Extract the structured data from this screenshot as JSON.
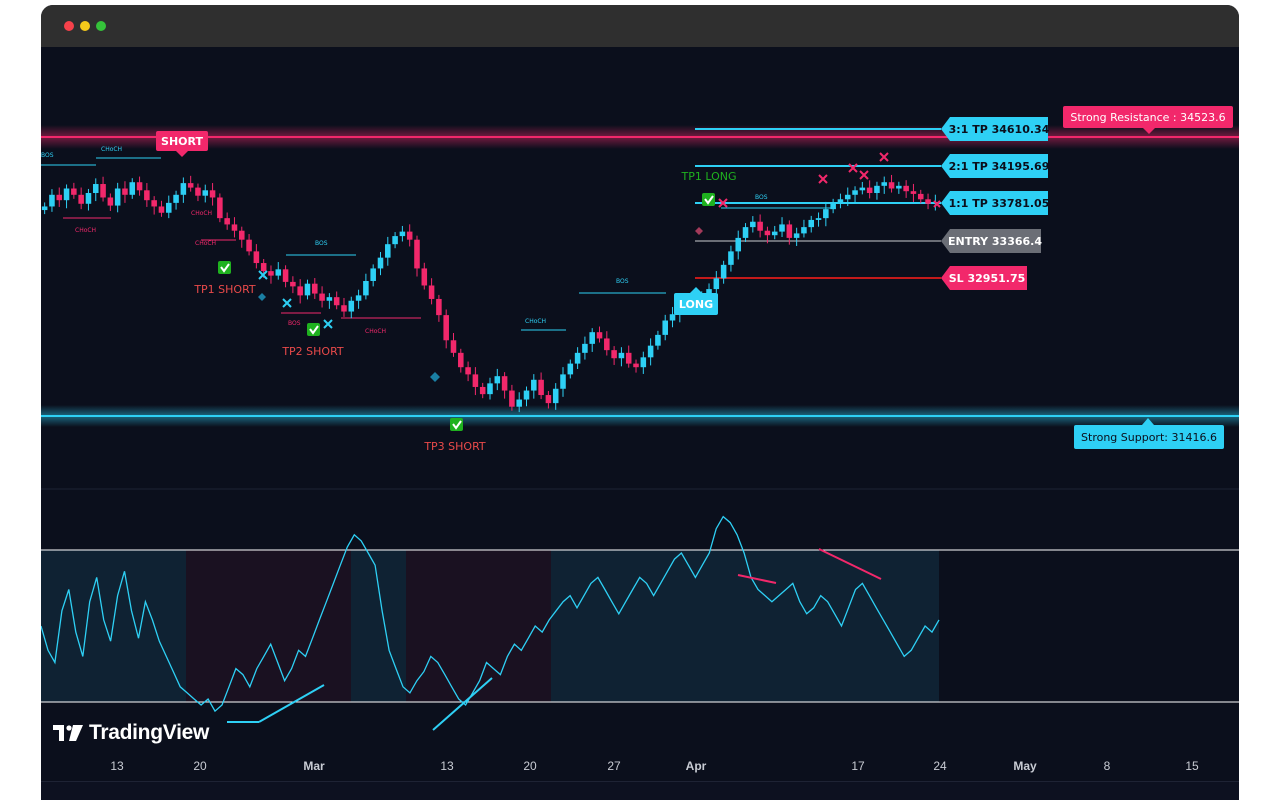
{
  "window": {
    "controls": [
      "close",
      "minimize",
      "maximize"
    ],
    "brand": "TradingView"
  },
  "colors": {
    "background": "#0b0f1c",
    "bull": "#2ed0f5",
    "bear": "#f2286b",
    "entry": "#6b6e76",
    "sl_line": "#c41a1a",
    "tp_label_text": "#e94a4a",
    "long_label": "#1fb11f"
  },
  "chart_data": {
    "type": "line",
    "x_axis": [
      "13",
      "20",
      "Mar",
      "13",
      "20",
      "27",
      "Apr",
      "17",
      "24",
      "May",
      "8",
      "15"
    ],
    "levels": {
      "resistance": {
        "label": "Strong Resistance : 34523.6",
        "value": 34523.6
      },
      "support": {
        "label": "Strong Support: 31416.6",
        "value": 31416.6
      },
      "tp3": {
        "label": "3:1 TP 34610.34",
        "value": 34610.34
      },
      "tp2": {
        "label": "2:1 TP 34195.69",
        "value": 34195.69
      },
      "tp1": {
        "label": "1:1 TP 33781.05",
        "value": 33781.05
      },
      "entry": {
        "label": "ENTRY 33366.4",
        "value": 33366.4
      },
      "sl": {
        "label": "SL 32951.75",
        "value": 32951.75
      }
    },
    "signals": [
      {
        "label": "SHORT",
        "side": "short"
      },
      {
        "label": "LONG",
        "side": "long"
      }
    ],
    "take_profit_hits": [
      {
        "label": "TP1 SHORT"
      },
      {
        "label": "TP2 SHORT"
      },
      {
        "label": "TP3 SHORT"
      },
      {
        "label": "TP1 LONG"
      }
    ],
    "structure_labels": [
      "BOS",
      "CHoCH",
      "CHoCH",
      "CHoCH",
      "BOS",
      "BOS",
      "CHoCH",
      "CHoCH",
      "CHoCH",
      "BOS",
      "BOS"
    ],
    "price_path": [
      [
        0,
        33750
      ],
      [
        1,
        33880
      ],
      [
        2,
        33820
      ],
      [
        3,
        33950
      ],
      [
        4,
        33880
      ],
      [
        5,
        33780
      ],
      [
        6,
        33900
      ],
      [
        7,
        34000
      ],
      [
        8,
        33850
      ],
      [
        9,
        33760
      ],
      [
        10,
        33950
      ],
      [
        11,
        33880
      ],
      [
        12,
        34020
      ],
      [
        13,
        33930
      ],
      [
        14,
        33820
      ],
      [
        15,
        33750
      ],
      [
        16,
        33680
      ],
      [
        17,
        33790
      ],
      [
        18,
        33880
      ],
      [
        19,
        34010
      ],
      [
        20,
        33960
      ],
      [
        21,
        33870
      ],
      [
        22,
        33930
      ],
      [
        23,
        33850
      ],
      [
        24,
        33620
      ],
      [
        25,
        33550
      ],
      [
        26,
        33480
      ],
      [
        27,
        33380
      ],
      [
        28,
        33250
      ],
      [
        29,
        33120
      ],
      [
        30,
        33030
      ],
      [
        31,
        32980
      ],
      [
        32,
        33050
      ],
      [
        33,
        32910
      ],
      [
        34,
        32860
      ],
      [
        35,
        32760
      ],
      [
        36,
        32890
      ],
      [
        37,
        32780
      ],
      [
        38,
        32700
      ],
      [
        39,
        32740
      ],
      [
        40,
        32650
      ],
      [
        41,
        32580
      ],
      [
        42,
        32700
      ],
      [
        43,
        32760
      ],
      [
        44,
        32920
      ],
      [
        45,
        33060
      ],
      [
        46,
        33180
      ],
      [
        47,
        33330
      ],
      [
        48,
        33420
      ],
      [
        49,
        33470
      ],
      [
        50,
        33380
      ],
      [
        51,
        33060
      ],
      [
        52,
        32870
      ],
      [
        53,
        32720
      ],
      [
        54,
        32540
      ],
      [
        55,
        32260
      ],
      [
        56,
        32120
      ],
      [
        57,
        31960
      ],
      [
        58,
        31880
      ],
      [
        59,
        31740
      ],
      [
        60,
        31660
      ],
      [
        61,
        31780
      ],
      [
        62,
        31860
      ],
      [
        63,
        31700
      ],
      [
        64,
        31520
      ],
      [
        65,
        31600
      ],
      [
        66,
        31700
      ],
      [
        67,
        31820
      ],
      [
        68,
        31650
      ],
      [
        69,
        31560
      ],
      [
        70,
        31720
      ],
      [
        71,
        31880
      ],
      [
        72,
        32000
      ],
      [
        73,
        32120
      ],
      [
        74,
        32220
      ],
      [
        75,
        32350
      ],
      [
        76,
        32280
      ],
      [
        77,
        32150
      ],
      [
        78,
        32060
      ],
      [
        79,
        32120
      ],
      [
        80,
        32000
      ],
      [
        81,
        31960
      ],
      [
        82,
        32070
      ],
      [
        83,
        32200
      ],
      [
        84,
        32320
      ],
      [
        85,
        32480
      ],
      [
        86,
        32550
      ],
      [
        87,
        32620
      ],
      [
        88,
        32660
      ],
      [
        89,
        32700
      ],
      [
        90,
        32760
      ],
      [
        91,
        32830
      ],
      [
        92,
        32950
      ],
      [
        93,
        33100
      ],
      [
        94,
        33250
      ],
      [
        95,
        33400
      ],
      [
        96,
        33520
      ],
      [
        97,
        33580
      ],
      [
        98,
        33480
      ],
      [
        99,
        33430
      ],
      [
        100,
        33470
      ],
      [
        101,
        33550
      ],
      [
        102,
        33400
      ],
      [
        103,
        33450
      ],
      [
        104,
        33520
      ],
      [
        105,
        33600
      ],
      [
        106,
        33620
      ],
      [
        107,
        33720
      ],
      [
        108,
        33790
      ],
      [
        109,
        33830
      ],
      [
        110,
        33880
      ],
      [
        111,
        33930
      ],
      [
        112,
        33960
      ],
      [
        113,
        33900
      ],
      [
        114,
        33980
      ],
      [
        115,
        34020
      ],
      [
        116,
        33950
      ],
      [
        117,
        33980
      ],
      [
        118,
        33920
      ],
      [
        119,
        33890
      ],
      [
        120,
        33830
      ],
      [
        121,
        33780
      ],
      [
        122,
        33800
      ]
    ],
    "oscillator": {
      "upper_band": 75,
      "lower_band": 25,
      "values": [
        50,
        42,
        38,
        55,
        62,
        48,
        40,
        58,
        66,
        52,
        45,
        60,
        68,
        55,
        46,
        58,
        52,
        45,
        40,
        35,
        30,
        28,
        26,
        24,
        26,
        22,
        24,
        30,
        36,
        34,
        30,
        36,
        40,
        44,
        38,
        32,
        36,
        42,
        40,
        46,
        52,
        58,
        64,
        70,
        76,
        80,
        78,
        74,
        70,
        55,
        42,
        36,
        30,
        28,
        32,
        35,
        40,
        38,
        34,
        30,
        26,
        24,
        28,
        32,
        38,
        36,
        34,
        40,
        44,
        42,
        46,
        50,
        48,
        52,
        55,
        58,
        60,
        56,
        60,
        64,
        66,
        62,
        58,
        54,
        58,
        62,
        66,
        64,
        60,
        64,
        68,
        72,
        74,
        70,
        66,
        70,
        74,
        82,
        86,
        84,
        80,
        74,
        66,
        62,
        60,
        58,
        60,
        62,
        64,
        58,
        54,
        56,
        60,
        58,
        54,
        50,
        56,
        62,
        64,
        60,
        56,
        52,
        48,
        44,
        40,
        42,
        46,
        50,
        48,
        52
      ]
    }
  }
}
